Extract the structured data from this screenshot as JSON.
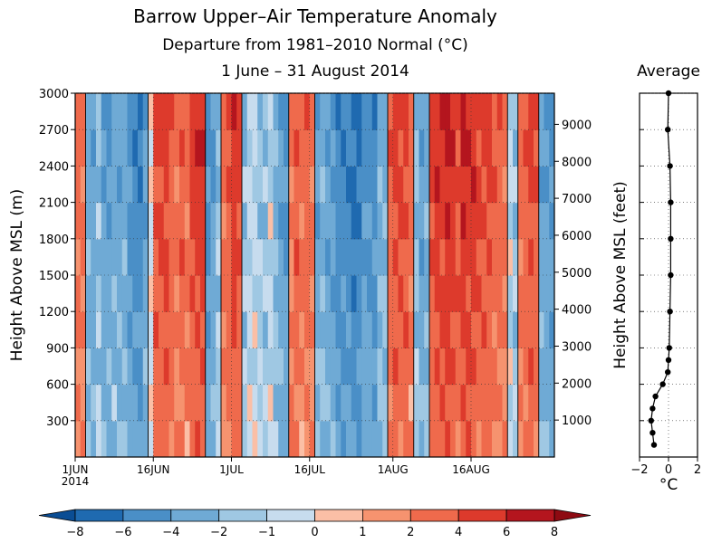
{
  "title": "Barrow Upper–Air Temperature Anomaly",
  "subtitle": "Departure from 1981–2010 Normal (°C)",
  "date_range": "1 June – 31 August 2014",
  "chart_data": [
    {
      "type": "heatmap",
      "title": "Barrow Upper–Air Temperature Anomaly",
      "ylabel": "Height Above MSL (m)",
      "ylabel_right": "Height Above MSL (feet)",
      "ylim": [
        0,
        3000
      ],
      "y_ticks": [
        "300",
        "600",
        "900",
        "1200",
        "1500",
        "1800",
        "2100",
        "2400",
        "2700",
        "3000"
      ],
      "y_tick_values": [
        300,
        600,
        900,
        1200,
        1500,
        1800,
        2100,
        2400,
        2700,
        3000
      ],
      "y2_ticks": [
        "1000",
        "2000",
        "3000",
        "4000",
        "5000",
        "6000",
        "7000",
        "8000",
        "9000"
      ],
      "y2_tick_values_ft": [
        1000,
        2000,
        3000,
        4000,
        5000,
        6000,
        7000,
        8000,
        9000
      ],
      "x_range_days": [
        0,
        92
      ],
      "x_ticks": [
        "1JUN",
        "16JUN",
        "1JUL",
        "16JUL",
        "1AUG",
        "16AUG"
      ],
      "x_tick_days": [
        0,
        15,
        30,
        45,
        61,
        76
      ],
      "x_year_label": "2014",
      "approx_anomaly_by_day": [
        3,
        3,
        -3,
        -4,
        -2,
        -4,
        -4,
        -3,
        -4,
        -3,
        -5,
        -6,
        -6,
        -4,
        0,
        5,
        5,
        5,
        4,
        3,
        4,
        3,
        5,
        6,
        6,
        -5,
        -4,
        -2,
        3,
        4,
        6,
        5,
        -2,
        -1,
        -1,
        -2,
        -2,
        -1,
        -3,
        -4,
        -5,
        3,
        4,
        3,
        4,
        3,
        -4,
        -3,
        -4,
        -5,
        -6,
        -6,
        -6,
        -7,
        -7,
        -5,
        -5,
        -6,
        -3,
        -3,
        4,
        5,
        5,
        5,
        3,
        -2,
        -4,
        -3,
        5,
        6,
        6,
        7,
        6,
        5,
        7,
        6,
        6,
        5,
        5,
        5,
        4,
        4,
        3,
        -1,
        -2,
        3,
        4,
        5,
        4,
        -4,
        -4,
        -5
      ],
      "colorbar": {
        "levels": [
          "−8",
          "−6",
          "−4",
          "−2",
          "−1",
          "0",
          "1",
          "2",
          "4",
          "6",
          "8"
        ],
        "level_values": [
          -8,
          -6,
          -4,
          -2,
          -1,
          0,
          1,
          2,
          4,
          6,
          8
        ],
        "colors": [
          "#1f6ab0",
          "#4a8fc7",
          "#6faad5",
          "#9fc8e3",
          "#c7dcee",
          "#fbbfa6",
          "#f6936f",
          "#ef6a4c",
          "#dd3a2c",
          "#b4151e"
        ],
        "low_color": "#0a4d94",
        "high_color": "#8e0a12"
      }
    },
    {
      "type": "line",
      "title": "Average",
      "ylabel": "Height Above MSL (feet)",
      "xlabel": "°C",
      "xlim": [
        -2,
        2
      ],
      "x_ticks": [
        "−2",
        "0",
        "2"
      ],
      "x_tick_values": [
        -2,
        0,
        2
      ],
      "heights_m": [
        3000,
        2700,
        2400,
        2100,
        1800,
        1500,
        1200,
        900,
        800,
        700,
        600,
        500,
        400,
        300,
        200,
        100
      ],
      "values": [
        0,
        -0.05,
        0.1,
        0.15,
        0.15,
        0.15,
        0.1,
        0.05,
        0.0,
        -0.05,
        -0.4,
        -0.9,
        -1.1,
        -1.2,
        -1.1,
        -1.0
      ]
    }
  ]
}
